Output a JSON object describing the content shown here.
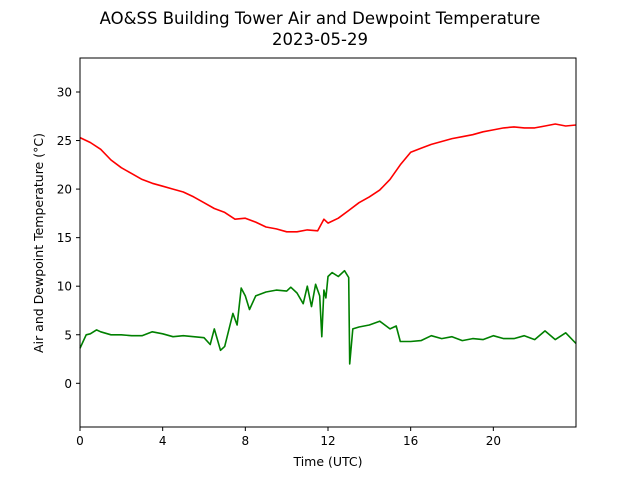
{
  "chart_data": {
    "type": "line",
    "title": "AO&SS Building Tower Air and Dewpoint Temperature",
    "subtitle": "2023-05-29",
    "xlabel": "Time (UTC)",
    "ylabel": "Air and Dewpoint Temperature (°C)",
    "xlim": [
      0,
      24
    ],
    "ylim": [
      -4.5,
      33.5
    ],
    "xticks": [
      0,
      4,
      8,
      12,
      16,
      20
    ],
    "yticks": [
      0,
      5,
      10,
      15,
      20,
      25,
      30
    ],
    "grid": false,
    "legend": "none",
    "series": [
      {
        "color": "#ff0000",
        "x": [
          0,
          0.5,
          1,
          1.5,
          2,
          2.5,
          3,
          3.5,
          4,
          4.5,
          5,
          5.5,
          6,
          6.5,
          7,
          7.5,
          8,
          8.5,
          9,
          9.5,
          10,
          10.5,
          11,
          11.5,
          11.8,
          12,
          12.5,
          13,
          13.5,
          14,
          14.5,
          15,
          15.5,
          16,
          16.5,
          17,
          17.5,
          18,
          18.5,
          19,
          19.5,
          20,
          20.5,
          21,
          21.5,
          22,
          22.5,
          23,
          23.5,
          24
        ],
        "y": [
          25.3,
          24.8,
          24.1,
          23.0,
          22.2,
          21.6,
          21.0,
          20.6,
          20.3,
          20.0,
          19.7,
          19.2,
          18.6,
          18.0,
          17.6,
          16.9,
          17.0,
          16.6,
          16.1,
          15.9,
          15.6,
          15.6,
          15.8,
          15.7,
          16.9,
          16.5,
          17.0,
          17.8,
          18.6,
          19.2,
          19.9,
          21.0,
          22.5,
          23.8,
          24.2,
          24.6,
          24.9,
          25.2,
          25.4,
          25.6,
          25.9,
          26.1,
          26.3,
          26.4,
          26.3,
          26.3,
          26.5,
          26.7,
          26.5,
          26.6
        ]
      },
      {
        "color": "#008000",
        "x": [
          0,
          0.15,
          0.3,
          0.5,
          0.8,
          1,
          1.5,
          2,
          2.5,
          3,
          3.5,
          4,
          4.5,
          5,
          5.5,
          6,
          6.3,
          6.5,
          6.8,
          7,
          7.2,
          7.4,
          7.6,
          7.8,
          8,
          8.2,
          8.5,
          9,
          9.5,
          10,
          10.2,
          10.5,
          10.8,
          11,
          11.2,
          11.4,
          11.6,
          11.7,
          11.8,
          11.9,
          12,
          12.2,
          12.5,
          12.8,
          13,
          13.05,
          13.2,
          13.5,
          14,
          14.5,
          15,
          15.3,
          15.5,
          16,
          16.5,
          17,
          17.5,
          18,
          18.5,
          19,
          19.5,
          20,
          20.5,
          21,
          21.5,
          22,
          22.5,
          23,
          23.5,
          24
        ],
        "y": [
          3.6,
          4.3,
          5.0,
          5.1,
          5.5,
          5.3,
          5.0,
          5.0,
          4.9,
          4.9,
          5.3,
          5.1,
          4.8,
          4.9,
          4.8,
          4.7,
          4.0,
          5.6,
          3.4,
          3.8,
          5.5,
          7.2,
          6.0,
          9.8,
          9.0,
          7.6,
          9.0,
          9.4,
          9.6,
          9.5,
          9.9,
          9.3,
          8.2,
          10.0,
          7.9,
          10.2,
          9.0,
          4.8,
          9.6,
          8.8,
          11.0,
          11.4,
          11.0,
          11.6,
          10.9,
          2.0,
          5.6,
          5.8,
          6.0,
          6.4,
          5.6,
          5.9,
          4.3,
          4.3,
          4.4,
          4.9,
          4.6,
          4.8,
          4.4,
          4.6,
          4.5,
          4.9,
          4.6,
          4.6,
          4.9,
          4.5,
          5.4,
          4.5,
          5.2,
          4.1
        ]
      }
    ]
  }
}
